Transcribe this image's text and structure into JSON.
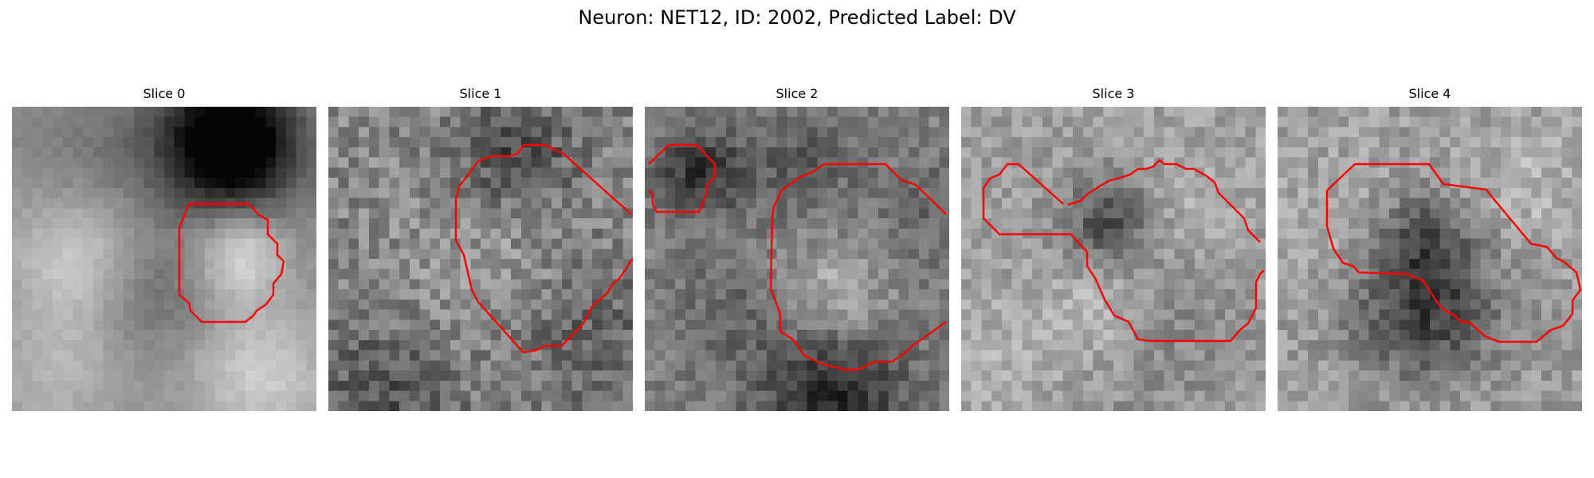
{
  "figure": {
    "title": "Neuron: NET12, ID: 2002, Predicted Label: DV",
    "contour_color": "#ff0000",
    "colormap": "gray"
  },
  "panels": [
    {
      "title": "Slice 0"
    },
    {
      "title": "Slice 1"
    },
    {
      "title": "Slice 2"
    },
    {
      "title": "Slice 3"
    },
    {
      "title": "Slice 4"
    }
  ]
}
